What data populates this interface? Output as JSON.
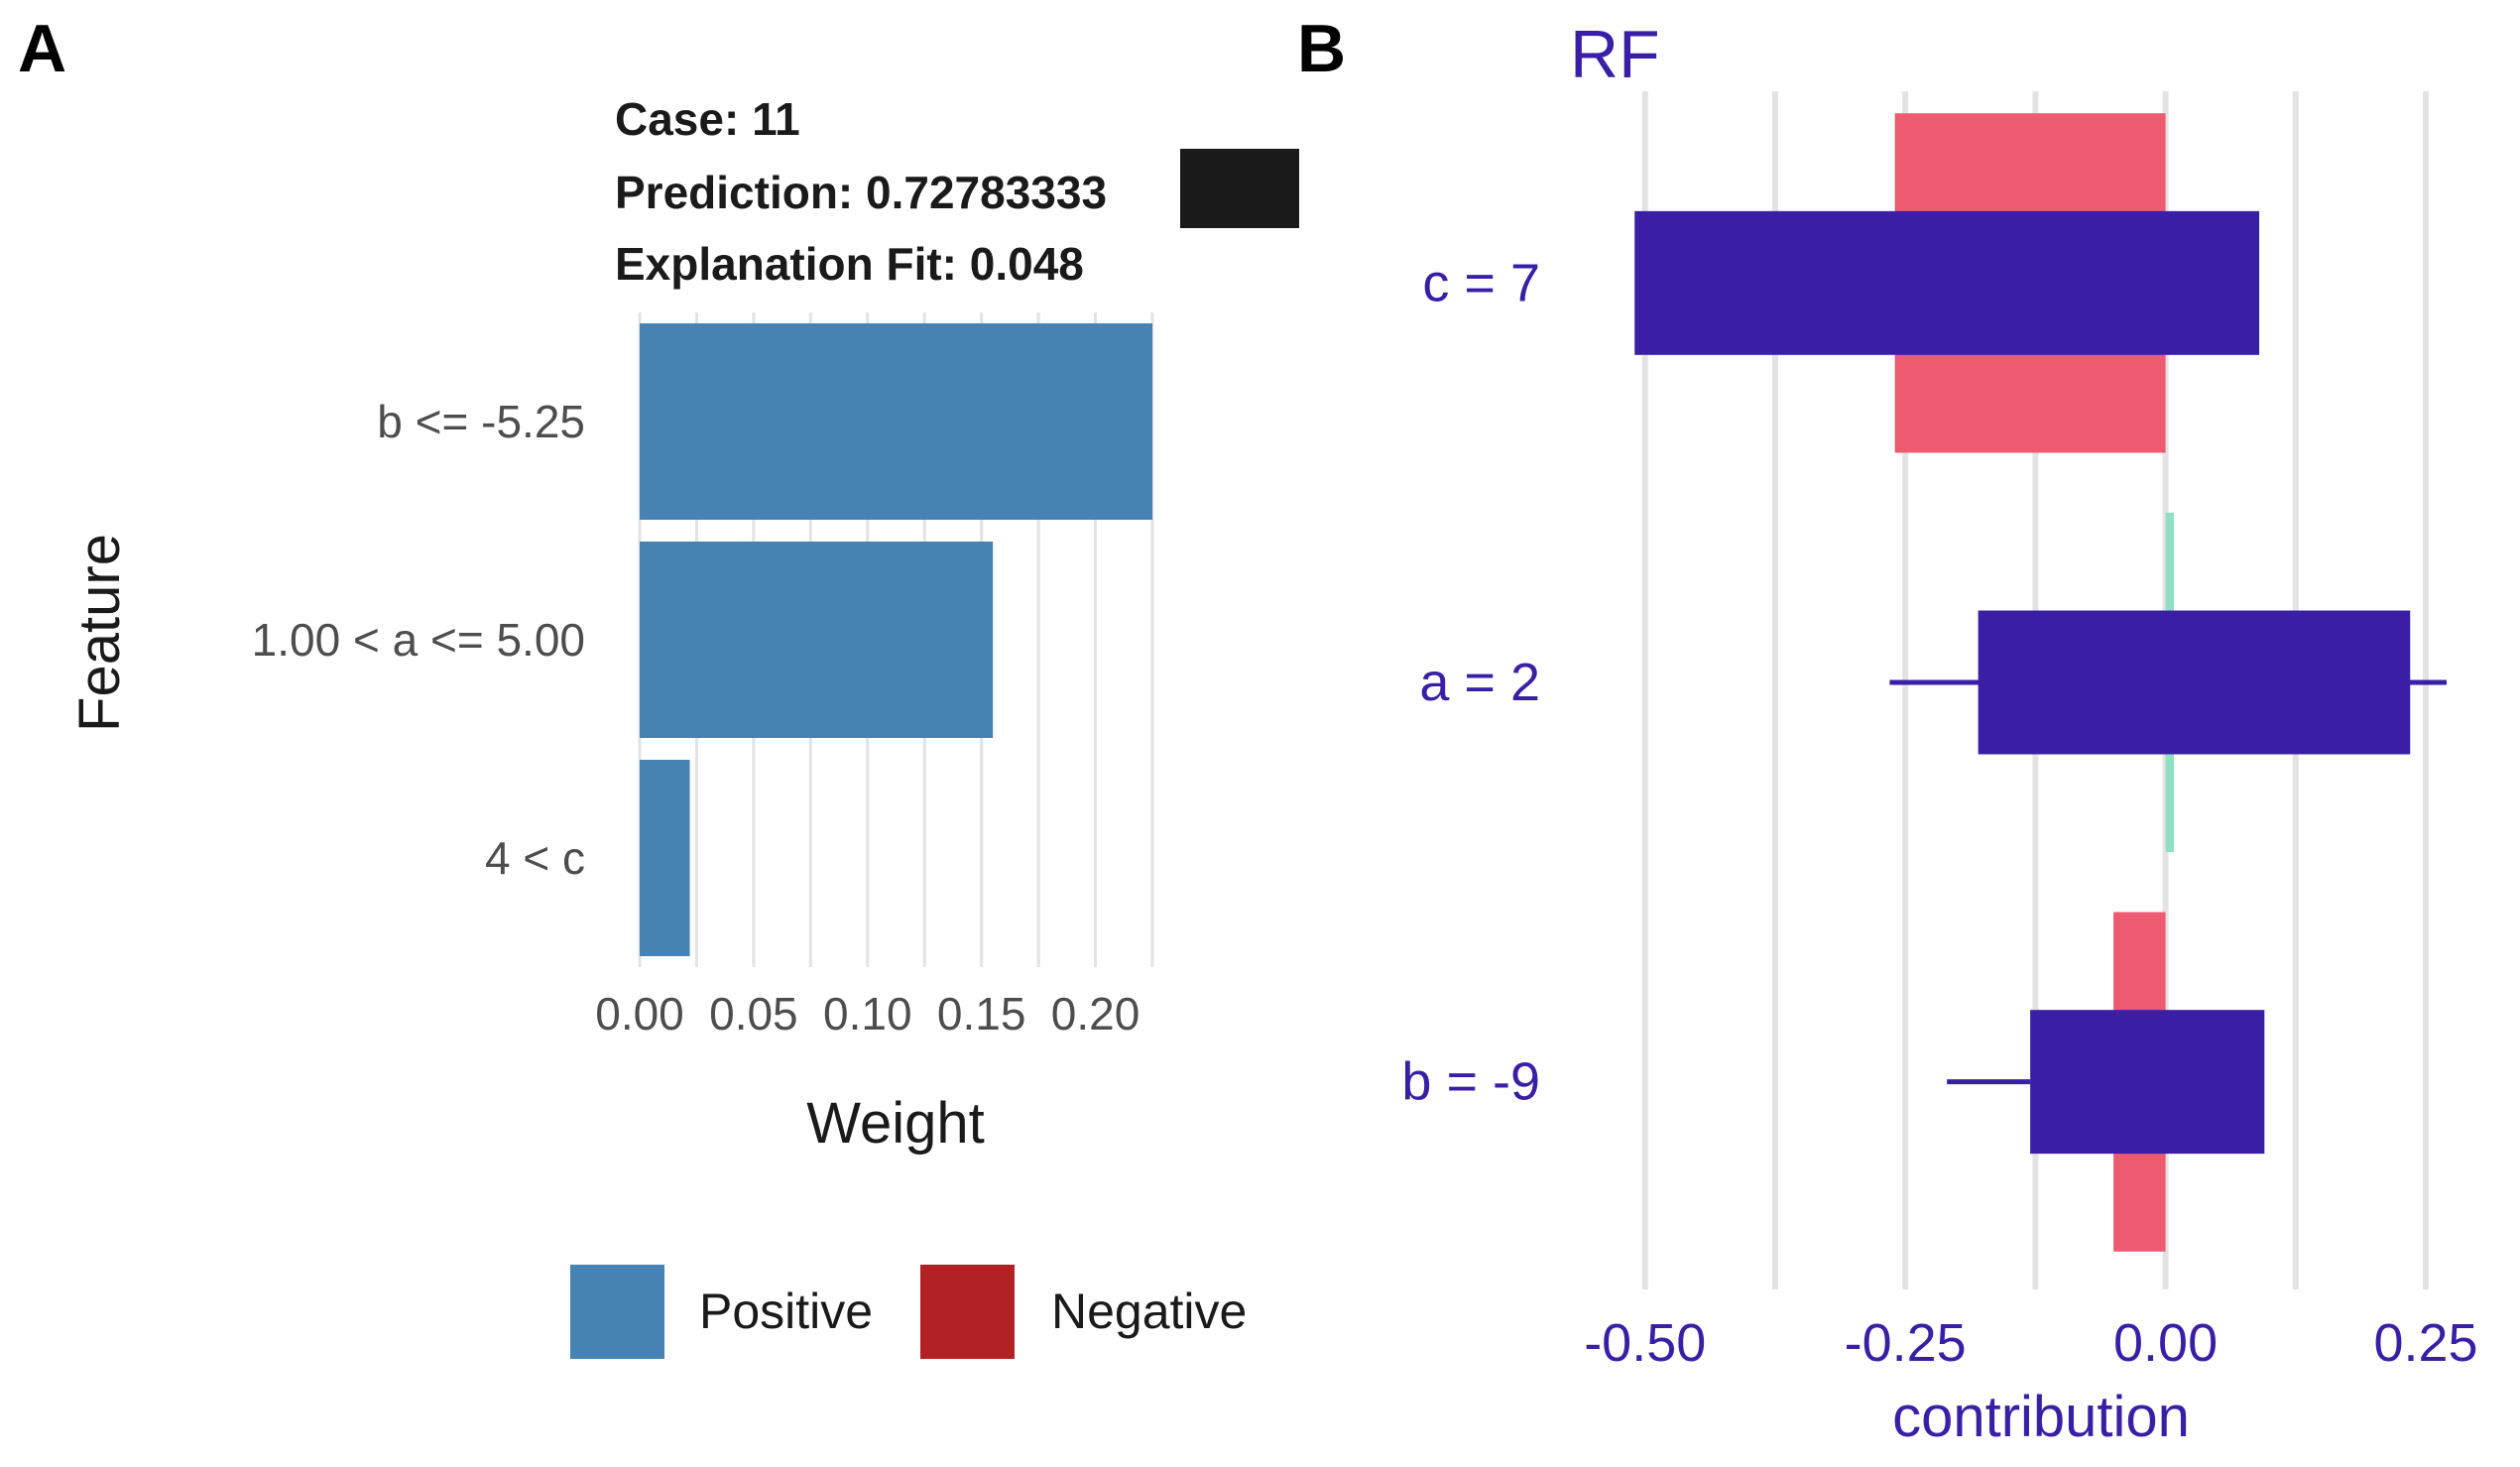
{
  "colors": {
    "lime_positive": "#4682B4",
    "lime_negative": "#B22222",
    "rf_text": "#3A1FA6",
    "rf_main": "#3A1FA6",
    "rf_red": "#EE5A70",
    "rf_green": "#8FE0C4",
    "grid": "#E3E3E3",
    "text_dark": "#1a1a1a",
    "text_tick": "#4d4d4d"
  },
  "chart_data": [
    {
      "panel_label": "A",
      "type": "bar",
      "orientation": "horizontal",
      "title_lines": [
        "Case: 11",
        "Prediction: 0.72783333",
        "Explanation Fit: 0.048"
      ],
      "categories": [
        "b <= -5.25",
        "1.00 < a <= 5.00",
        "4 < c"
      ],
      "values": [
        0.225,
        0.155,
        0.022
      ],
      "signs": [
        "Positive",
        "Positive",
        "Positive"
      ],
      "xlabel": "Weight",
      "ylabel": "Feature",
      "xlim": [
        0,
        0.225
      ],
      "xticks": [
        "0.00",
        "0.05",
        "0.10",
        "0.15",
        "0.20"
      ],
      "xtick_values": [
        0,
        0.05,
        0.1,
        0.15,
        0.2
      ],
      "legend": [
        "Positive",
        "Negative"
      ],
      "legend_position": "bottom"
    },
    {
      "panel_label": "B",
      "type": "bar",
      "orientation": "horizontal",
      "title": "RF",
      "categories": [
        "c = 7",
        "a = 2",
        "b = -9"
      ],
      "series": [
        {
          "name": "background-contribution",
          "color": "red/green",
          "values": [
            [
              -0.26,
              0.0
            ],
            [
              0.0,
              0.008
            ],
            [
              -0.05,
              0.0
            ]
          ]
        },
        {
          "name": "contribution-range",
          "color": "main",
          "values": [
            [
              -0.51,
              0.09
            ],
            [
              -0.18,
              0.235
            ],
            [
              -0.13,
              0.095
            ]
          ]
        },
        {
          "name": "whisker",
          "color": "main",
          "values": [
            null,
            [
              -0.265,
              0.27
            ],
            [
              -0.21,
              -0.13
            ]
          ]
        }
      ],
      "xlabel": "contribution",
      "xlim": [
        -0.535,
        0.27
      ],
      "xticks": [
        "-0.50",
        "-0.25",
        "0.00",
        "0.25"
      ],
      "xtick_values": [
        -0.5,
        -0.25,
        0,
        0.25
      ],
      "minor_grid": [
        -0.375,
        -0.125,
        0.125
      ]
    }
  ]
}
